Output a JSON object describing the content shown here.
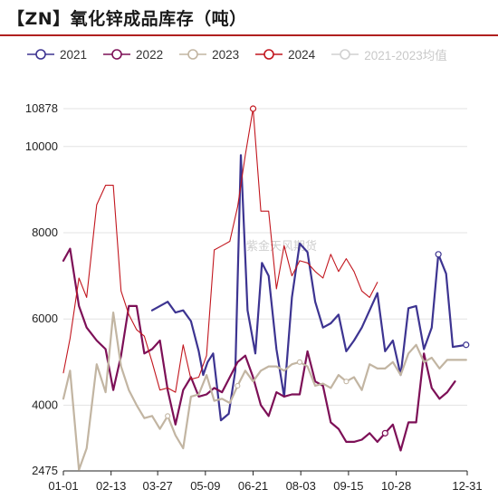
{
  "title": "【ZN】氧化锌成品库存（吨）",
  "watermark": "紫金天风期货",
  "legend": [
    {
      "label": "2021",
      "color": "#3d3491",
      "muted": false
    },
    {
      "label": "2022",
      "color": "#7d1057",
      "muted": false
    },
    {
      "label": "2023",
      "color": "#c2b5a2",
      "muted": false
    },
    {
      "label": "2024",
      "color": "#c2161e",
      "muted": false
    },
    {
      "label": "2021-2023均值",
      "color": "#d0d0d0",
      "muted": true
    }
  ],
  "chart_data": {
    "type": "line",
    "title": "【ZN】氧化锌成品库存（吨）",
    "x_type": "day_of_year",
    "x_ticks": [
      "01-01",
      "02-13",
      "03-27",
      "05-09",
      "06-21",
      "08-03",
      "09-15",
      "10-28",
      "12-31"
    ],
    "y_ticks": [
      "2475",
      "4000",
      "6000",
      "8000",
      "10000",
      "10878"
    ],
    "ylim": [
      2475,
      10878
    ],
    "grid": "horizontal",
    "legend_position": "top",
    "series": [
      {
        "name": "2021",
        "color": "#3d3491",
        "values": [
          [
            "03-22",
            6200
          ],
          [
            "04-05",
            6400
          ],
          [
            "04-12",
            6150
          ],
          [
            "04-19",
            6200
          ],
          [
            "04-26",
            5950
          ],
          [
            "05-03",
            5250
          ],
          [
            "05-07",
            4700
          ],
          [
            "05-11",
            5000
          ],
          [
            "05-16",
            5200
          ],
          [
            "05-23",
            3650
          ],
          [
            "05-30",
            3800
          ],
          [
            "06-05",
            4800
          ],
          [
            "06-10",
            9800
          ],
          [
            "06-16",
            6200
          ],
          [
            "06-23",
            5200
          ],
          [
            "06-29",
            7300
          ],
          [
            "07-05",
            7000
          ],
          [
            "07-12",
            5300
          ],
          [
            "07-19",
            4200
          ],
          [
            "07-26",
            6500
          ],
          [
            "08-02",
            7750
          ],
          [
            "08-09",
            7550
          ],
          [
            "08-16",
            6400
          ],
          [
            "08-23",
            5800
          ],
          [
            "08-30",
            5900
          ],
          [
            "09-06",
            6100
          ],
          [
            "09-13",
            5250
          ],
          [
            "09-20",
            5500
          ],
          [
            "09-27",
            5800
          ],
          [
            "10-04",
            6200
          ],
          [
            "10-11",
            6600
          ],
          [
            "10-18",
            5250
          ],
          [
            "10-25",
            5500
          ],
          [
            "11-01",
            4700
          ],
          [
            "11-08",
            6250
          ],
          [
            "11-15",
            6300
          ],
          [
            "11-22",
            5300
          ],
          [
            "11-29",
            5800
          ],
          [
            "12-05",
            7500
          ],
          [
            "12-12",
            7050
          ],
          [
            "12-18",
            5350
          ],
          [
            "12-30",
            5400
          ]
        ]
      },
      {
        "name": "2022",
        "color": "#7d1057",
        "values": [
          [
            "01-01",
            7350
          ],
          [
            "01-07",
            7630
          ],
          [
            "01-15",
            6300
          ],
          [
            "01-22",
            5800
          ],
          [
            "01-31",
            5500
          ],
          [
            "02-08",
            5300
          ],
          [
            "02-15",
            4350
          ],
          [
            "02-22",
            5150
          ],
          [
            "03-01",
            6300
          ],
          [
            "03-08",
            6300
          ],
          [
            "03-15",
            5200
          ],
          [
            "03-22",
            5300
          ],
          [
            "03-29",
            5500
          ],
          [
            "04-05",
            4350
          ],
          [
            "04-12",
            3550
          ],
          [
            "04-19",
            4350
          ],
          [
            "04-26",
            4650
          ],
          [
            "05-03",
            4200
          ],
          [
            "05-10",
            4250
          ],
          [
            "05-17",
            4400
          ],
          [
            "05-24",
            4300
          ],
          [
            "05-31",
            4650
          ],
          [
            "06-07",
            5000
          ],
          [
            "06-14",
            5150
          ],
          [
            "06-21",
            4650
          ],
          [
            "06-28",
            4000
          ],
          [
            "07-05",
            3750
          ],
          [
            "07-12",
            4300
          ],
          [
            "07-19",
            4200
          ],
          [
            "07-26",
            4250
          ],
          [
            "08-02",
            4250
          ],
          [
            "08-09",
            5250
          ],
          [
            "08-16",
            4550
          ],
          [
            "08-23",
            4450
          ],
          [
            "08-30",
            3600
          ],
          [
            "09-06",
            3450
          ],
          [
            "09-13",
            3150
          ],
          [
            "09-20",
            3150
          ],
          [
            "09-27",
            3200
          ],
          [
            "10-04",
            3350
          ],
          [
            "10-11",
            3150
          ],
          [
            "10-18",
            3350
          ],
          [
            "10-25",
            3550
          ],
          [
            "11-01",
            2950
          ],
          [
            "11-08",
            3600
          ],
          [
            "11-15",
            3600
          ],
          [
            "11-22",
            5200
          ],
          [
            "11-29",
            4400
          ],
          [
            "12-06",
            4150
          ],
          [
            "12-13",
            4300
          ],
          [
            "12-20",
            4550
          ]
        ]
      },
      {
        "name": "2023",
        "color": "#c2b5a2",
        "values": [
          [
            "01-01",
            4150
          ],
          [
            "01-07",
            4800
          ],
          [
            "01-15",
            2500
          ],
          [
            "01-22",
            3000
          ],
          [
            "01-31",
            4950
          ],
          [
            "02-08",
            4300
          ],
          [
            "02-15",
            6150
          ],
          [
            "02-22",
            4900
          ],
          [
            "03-01",
            4350
          ],
          [
            "03-08",
            4000
          ],
          [
            "03-15",
            3700
          ],
          [
            "03-22",
            3750
          ],
          [
            "03-29",
            3450
          ],
          [
            "04-05",
            3750
          ],
          [
            "04-12",
            3300
          ],
          [
            "04-19",
            3000
          ],
          [
            "04-26",
            4200
          ],
          [
            "05-03",
            4250
          ],
          [
            "05-10",
            4700
          ],
          [
            "05-17",
            4100
          ],
          [
            "05-24",
            4150
          ],
          [
            "05-31",
            4050
          ],
          [
            "06-07",
            4450
          ],
          [
            "06-14",
            4800
          ],
          [
            "06-21",
            4550
          ],
          [
            "06-28",
            4800
          ],
          [
            "07-05",
            4900
          ],
          [
            "07-12",
            4900
          ],
          [
            "07-19",
            4800
          ],
          [
            "07-26",
            4950
          ],
          [
            "08-02",
            5000
          ],
          [
            "08-09",
            4900
          ],
          [
            "08-16",
            4450
          ],
          [
            "08-23",
            4500
          ],
          [
            "08-30",
            4400
          ],
          [
            "09-06",
            4700
          ],
          [
            "09-13",
            4550
          ],
          [
            "09-20",
            4650
          ],
          [
            "09-27",
            4350
          ],
          [
            "10-04",
            4950
          ],
          [
            "10-11",
            4850
          ],
          [
            "10-18",
            4850
          ],
          [
            "10-25",
            5000
          ],
          [
            "11-01",
            4700
          ],
          [
            "11-08",
            5200
          ],
          [
            "11-15",
            5400
          ],
          [
            "11-22",
            5000
          ],
          [
            "11-29",
            5100
          ],
          [
            "12-06",
            4850
          ],
          [
            "12-13",
            5050
          ],
          [
            "12-20",
            5050
          ],
          [
            "12-30",
            5050
          ]
        ]
      },
      {
        "name": "2024",
        "color": "#c2161e",
        "values": [
          [
            "01-01",
            4750
          ],
          [
            "01-07",
            5550
          ],
          [
            "01-15",
            6950
          ],
          [
            "01-22",
            6500
          ],
          [
            "01-31",
            8650
          ],
          [
            "02-08",
            9100
          ],
          [
            "02-15",
            9100
          ],
          [
            "02-22",
            6650
          ],
          [
            "03-01",
            6100
          ],
          [
            "03-08",
            5750
          ],
          [
            "03-15",
            5600
          ],
          [
            "03-22",
            5000
          ],
          [
            "03-29",
            4350
          ],
          [
            "04-05",
            4400
          ],
          [
            "04-12",
            4300
          ],
          [
            "04-19",
            5400
          ],
          [
            "04-26",
            4600
          ],
          [
            "05-03",
            4650
          ],
          [
            "05-10",
            5150
          ],
          [
            "05-17",
            7600
          ],
          [
            "05-24",
            7700
          ],
          [
            "05-31",
            7800
          ],
          [
            "06-07",
            8600
          ],
          [
            "06-14",
            9800
          ],
          [
            "06-21",
            10878
          ],
          [
            "06-28",
            8500
          ],
          [
            "07-05",
            8500
          ],
          [
            "07-12",
            6700
          ],
          [
            "07-19",
            7700
          ],
          [
            "07-26",
            7000
          ],
          [
            "08-02",
            7350
          ],
          [
            "08-09",
            7300
          ],
          [
            "08-16",
            7100
          ],
          [
            "08-23",
            6950
          ],
          [
            "08-30",
            7500
          ],
          [
            "09-06",
            7100
          ],
          [
            "09-13",
            7400
          ],
          [
            "09-20",
            7100
          ],
          [
            "09-27",
            6650
          ],
          [
            "10-04",
            6500
          ],
          [
            "10-11",
            6850
          ]
        ]
      },
      {
        "name": "2021-2023均值",
        "color": "#d0d0d0",
        "values": []
      }
    ]
  }
}
